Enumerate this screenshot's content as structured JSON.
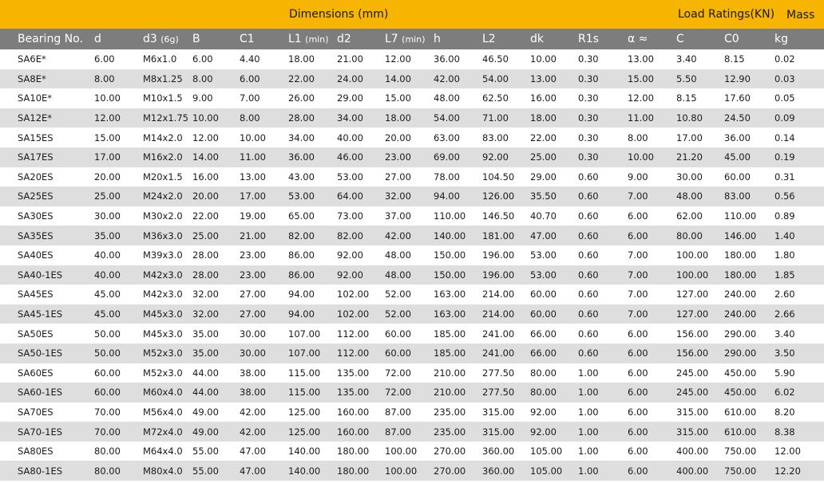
{
  "top_bar": {
    "dimensions_label": "Dimensions (mm)",
    "load_ratings_label": "Load Ratings(KN)",
    "mass_label": "Mass"
  },
  "columns": [
    {
      "label": "Bearing No.",
      "sub": ""
    },
    {
      "label": "d",
      "sub": ""
    },
    {
      "label": "d3",
      "sub": "(6g)"
    },
    {
      "label": "B",
      "sub": ""
    },
    {
      "label": "C1",
      "sub": ""
    },
    {
      "label": "L1",
      "sub": "(min)"
    },
    {
      "label": "d2",
      "sub": ""
    },
    {
      "label": "L7",
      "sub": "(min)"
    },
    {
      "label": "h",
      "sub": ""
    },
    {
      "label": "L2",
      "sub": ""
    },
    {
      "label": "dk",
      "sub": ""
    },
    {
      "label": "R1s",
      "sub": ""
    },
    {
      "label": "α ≈",
      "sub": ""
    },
    {
      "label": "C",
      "sub": ""
    },
    {
      "label": "C0",
      "sub": ""
    },
    {
      "label": "kg",
      "sub": ""
    }
  ],
  "rows": [
    [
      "SA6E*",
      "6.00",
      "M6x1.0",
      "6.00",
      "4.40",
      "18.00",
      "21.00",
      "12.00",
      "36.00",
      "46.50",
      "10.00",
      "0.30",
      "13.00",
      "3.40",
      "8.15",
      "0.02"
    ],
    [
      "SA8E*",
      "8.00",
      "M8x1.25",
      "8.00",
      "6.00",
      "22.00",
      "24.00",
      "14.00",
      "42.00",
      "54.00",
      "13.00",
      "0.30",
      "15.00",
      "5.50",
      "12.90",
      "0.03"
    ],
    [
      "SA10E*",
      "10.00",
      "M10x1.5",
      "9.00",
      "7.00",
      "26.00",
      "29.00",
      "15.00",
      "48.00",
      "62.50",
      "16.00",
      "0.30",
      "12.00",
      "8.15",
      "17.60",
      "0.05"
    ],
    [
      "SA12E*",
      "12.00",
      "M12x1.75",
      "10.00",
      "8.00",
      "28.00",
      "34.00",
      "18.00",
      "54.00",
      "71.00",
      "18.00",
      "0.30",
      "11.00",
      "10.80",
      "24.50",
      "0.09"
    ],
    [
      "SA15ES",
      "15.00",
      "M14x2.0",
      "12.00",
      "10.00",
      "34.00",
      "40.00",
      "20.00",
      "63.00",
      "83.00",
      "22.00",
      "0.30",
      "8.00",
      "17.00",
      "36.00",
      "0.14"
    ],
    [
      "SA17ES",
      "17.00",
      "M16x2.0",
      "14.00",
      "11.00",
      "36.00",
      "46.00",
      "23.00",
      "69.00",
      "92.00",
      "25.00",
      "0.30",
      "10.00",
      "21.20",
      "45.00",
      "0.19"
    ],
    [
      "SA20ES",
      "20.00",
      "M20x1.5",
      "16.00",
      "13.00",
      "43.00",
      "53.00",
      "27.00",
      "78.00",
      "104.50",
      "29.00",
      "0.60",
      "9.00",
      "30.00",
      "60.00",
      "0.31"
    ],
    [
      "SA25ES",
      "25.00",
      "M24x2.0",
      "20.00",
      "17.00",
      "53.00",
      "64.00",
      "32.00",
      "94.00",
      "126.00",
      "35.50",
      "0.60",
      "7.00",
      "48.00",
      "83.00",
      "0.56"
    ],
    [
      "SA30ES",
      "30.00",
      "M30x2.0",
      "22.00",
      "19.00",
      "65.00",
      "73.00",
      "37.00",
      "110.00",
      "146.50",
      "40.70",
      "0.60",
      "6.00",
      "62.00",
      "110.00",
      "0.89"
    ],
    [
      "SA35ES",
      "35.00",
      "M36x3.0",
      "25.00",
      "21.00",
      "82.00",
      "82.00",
      "42.00",
      "140.00",
      "181.00",
      "47.00",
      "0.60",
      "6.00",
      "80.00",
      "146.00",
      "1.40"
    ],
    [
      "SA40ES",
      "40.00",
      "M39x3.0",
      "28.00",
      "23.00",
      "86.00",
      "92.00",
      "48.00",
      "150.00",
      "196.00",
      "53.00",
      "0.60",
      "7.00",
      "100.00",
      "180.00",
      "1.80"
    ],
    [
      "SA40-1ES",
      "40.00",
      "M42x3.0",
      "28.00",
      "23.00",
      "86.00",
      "92.00",
      "48.00",
      "150.00",
      "196.00",
      "53.00",
      "0.60",
      "7.00",
      "100.00",
      "180.00",
      "1.85"
    ],
    [
      "SA45ES",
      "45.00",
      "M42x3.0",
      "32.00",
      "27.00",
      "94.00",
      "102.00",
      "52.00",
      "163.00",
      "214.00",
      "60.00",
      "0.60",
      "7.00",
      "127.00",
      "240.00",
      "2.60"
    ],
    [
      "SA45-1ES",
      "45.00",
      "M45x3.0",
      "32.00",
      "27.00",
      "94.00",
      "102.00",
      "52.00",
      "163.00",
      "214.00",
      "60.00",
      "0.60",
      "7.00",
      "127.00",
      "240.00",
      "2.66"
    ],
    [
      "SA50ES",
      "50.00",
      "M45x3.0",
      "35.00",
      "30.00",
      "107.00",
      "112.00",
      "60.00",
      "185.00",
      "241.00",
      "66.00",
      "0.60",
      "6.00",
      "156.00",
      "290.00",
      "3.40"
    ],
    [
      "SA50-1ES",
      "50.00",
      "M52x3.0",
      "35.00",
      "30.00",
      "107.00",
      "112.00",
      "60.00",
      "185.00",
      "241.00",
      "66.00",
      "0.60",
      "6.00",
      "156.00",
      "290.00",
      "3.50"
    ],
    [
      "SA60ES",
      "60.00",
      "M52x3.0",
      "44.00",
      "38.00",
      "115.00",
      "135.00",
      "72.00",
      "210.00",
      "277.50",
      "80.00",
      "1.00",
      "6.00",
      "245.00",
      "450.00",
      "5.90"
    ],
    [
      "SA60-1ES",
      "60.00",
      "M60x4.0",
      "44.00",
      "38.00",
      "115.00",
      "135.00",
      "72.00",
      "210.00",
      "277.50",
      "80.00",
      "1.00",
      "6.00",
      "245.00",
      "450.00",
      "6.02"
    ],
    [
      "SA70ES",
      "70.00",
      "M56x4.0",
      "49.00",
      "42.00",
      "125.00",
      "160.00",
      "87.00",
      "235.00",
      "315.00",
      "92.00",
      "1.00",
      "6.00",
      "315.00",
      "610.00",
      "8.20"
    ],
    [
      "SA70-1ES",
      "70.00",
      "M72x4.0",
      "49.00",
      "42.00",
      "125.00",
      "160.00",
      "87.00",
      "235.00",
      "315.00",
      "92.00",
      "1.00",
      "6.00",
      "315.00",
      "610.00",
      "8.38"
    ],
    [
      "SA80ES",
      "80.00",
      "M64x4.0",
      "55.00",
      "47.00",
      "140.00",
      "180.00",
      "100.00",
      "270.00",
      "360.00",
      "105.00",
      "1.00",
      "6.00",
      "400.00",
      "750.00",
      "12.00"
    ],
    [
      "SA80-1ES",
      "80.00",
      "M80x4.0",
      "55.00",
      "47.00",
      "140.00",
      "180.00",
      "100.00",
      "270.00",
      "360.00",
      "105.00",
      "1.00",
      "6.00",
      "400.00",
      "750.00",
      "12.20"
    ]
  ],
  "colors": {
    "top_bar": "#f7b400",
    "header_row": "#7d7d7d",
    "stripe": "#dedede"
  }
}
